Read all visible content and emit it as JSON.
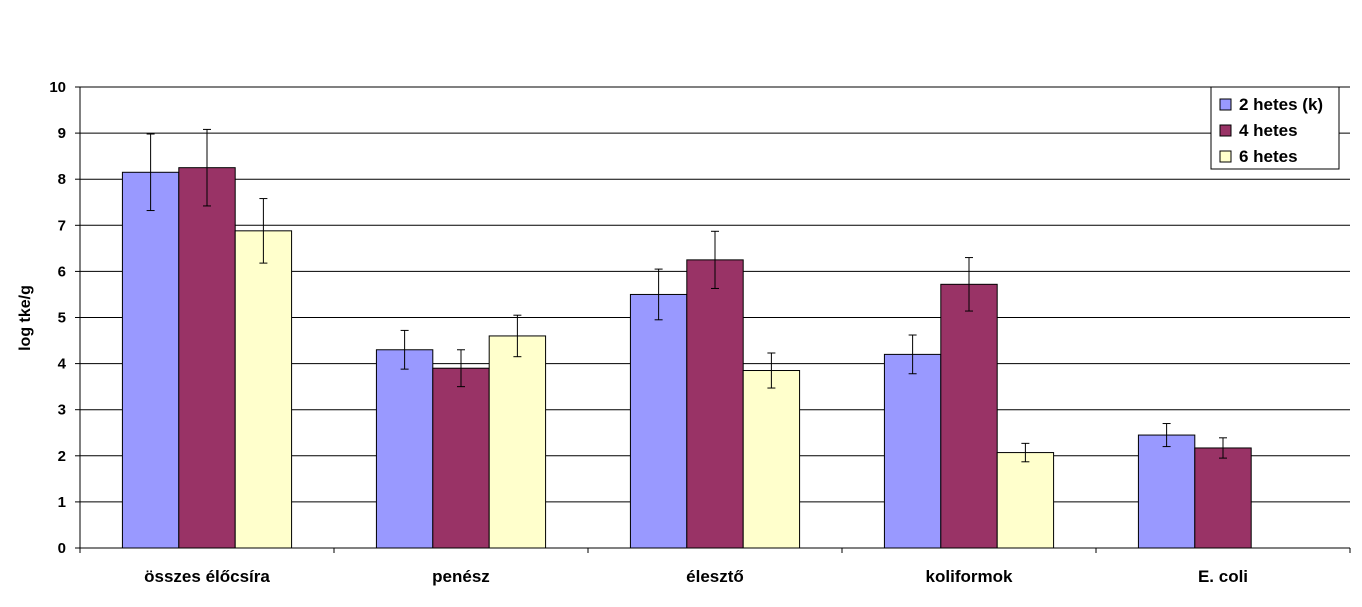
{
  "chart_data": {
    "type": "bar",
    "title": "",
    "xlabel": "",
    "ylabel": "log tke/g",
    "ylim": [
      0,
      10
    ],
    "yticks": [
      0,
      1,
      2,
      3,
      4,
      5,
      6,
      7,
      8,
      9,
      10
    ],
    "grid": true,
    "legend_position": "top-right",
    "categories": [
      "összes élőcsíra",
      "penész",
      "élesztő",
      "koliformok",
      "E. coli"
    ],
    "series": [
      {
        "name": "2 hetes (k)",
        "color": "#9999ff",
        "values": [
          8.15,
          4.3,
          5.5,
          4.2,
          2.45
        ],
        "errors": [
          0.83,
          0.42,
          0.55,
          0.42,
          0.25
        ]
      },
      {
        "name": "4 hetes",
        "color": "#993366",
        "values": [
          8.25,
          3.9,
          6.25,
          5.72,
          2.17
        ],
        "errors": [
          0.83,
          0.4,
          0.62,
          0.58,
          0.22
        ]
      },
      {
        "name": "6 hetes",
        "color": "#ffffcc",
        "values": [
          6.88,
          4.6,
          3.85,
          2.07,
          null
        ],
        "errors": [
          0.7,
          0.45,
          0.38,
          0.2,
          null
        ]
      }
    ]
  }
}
